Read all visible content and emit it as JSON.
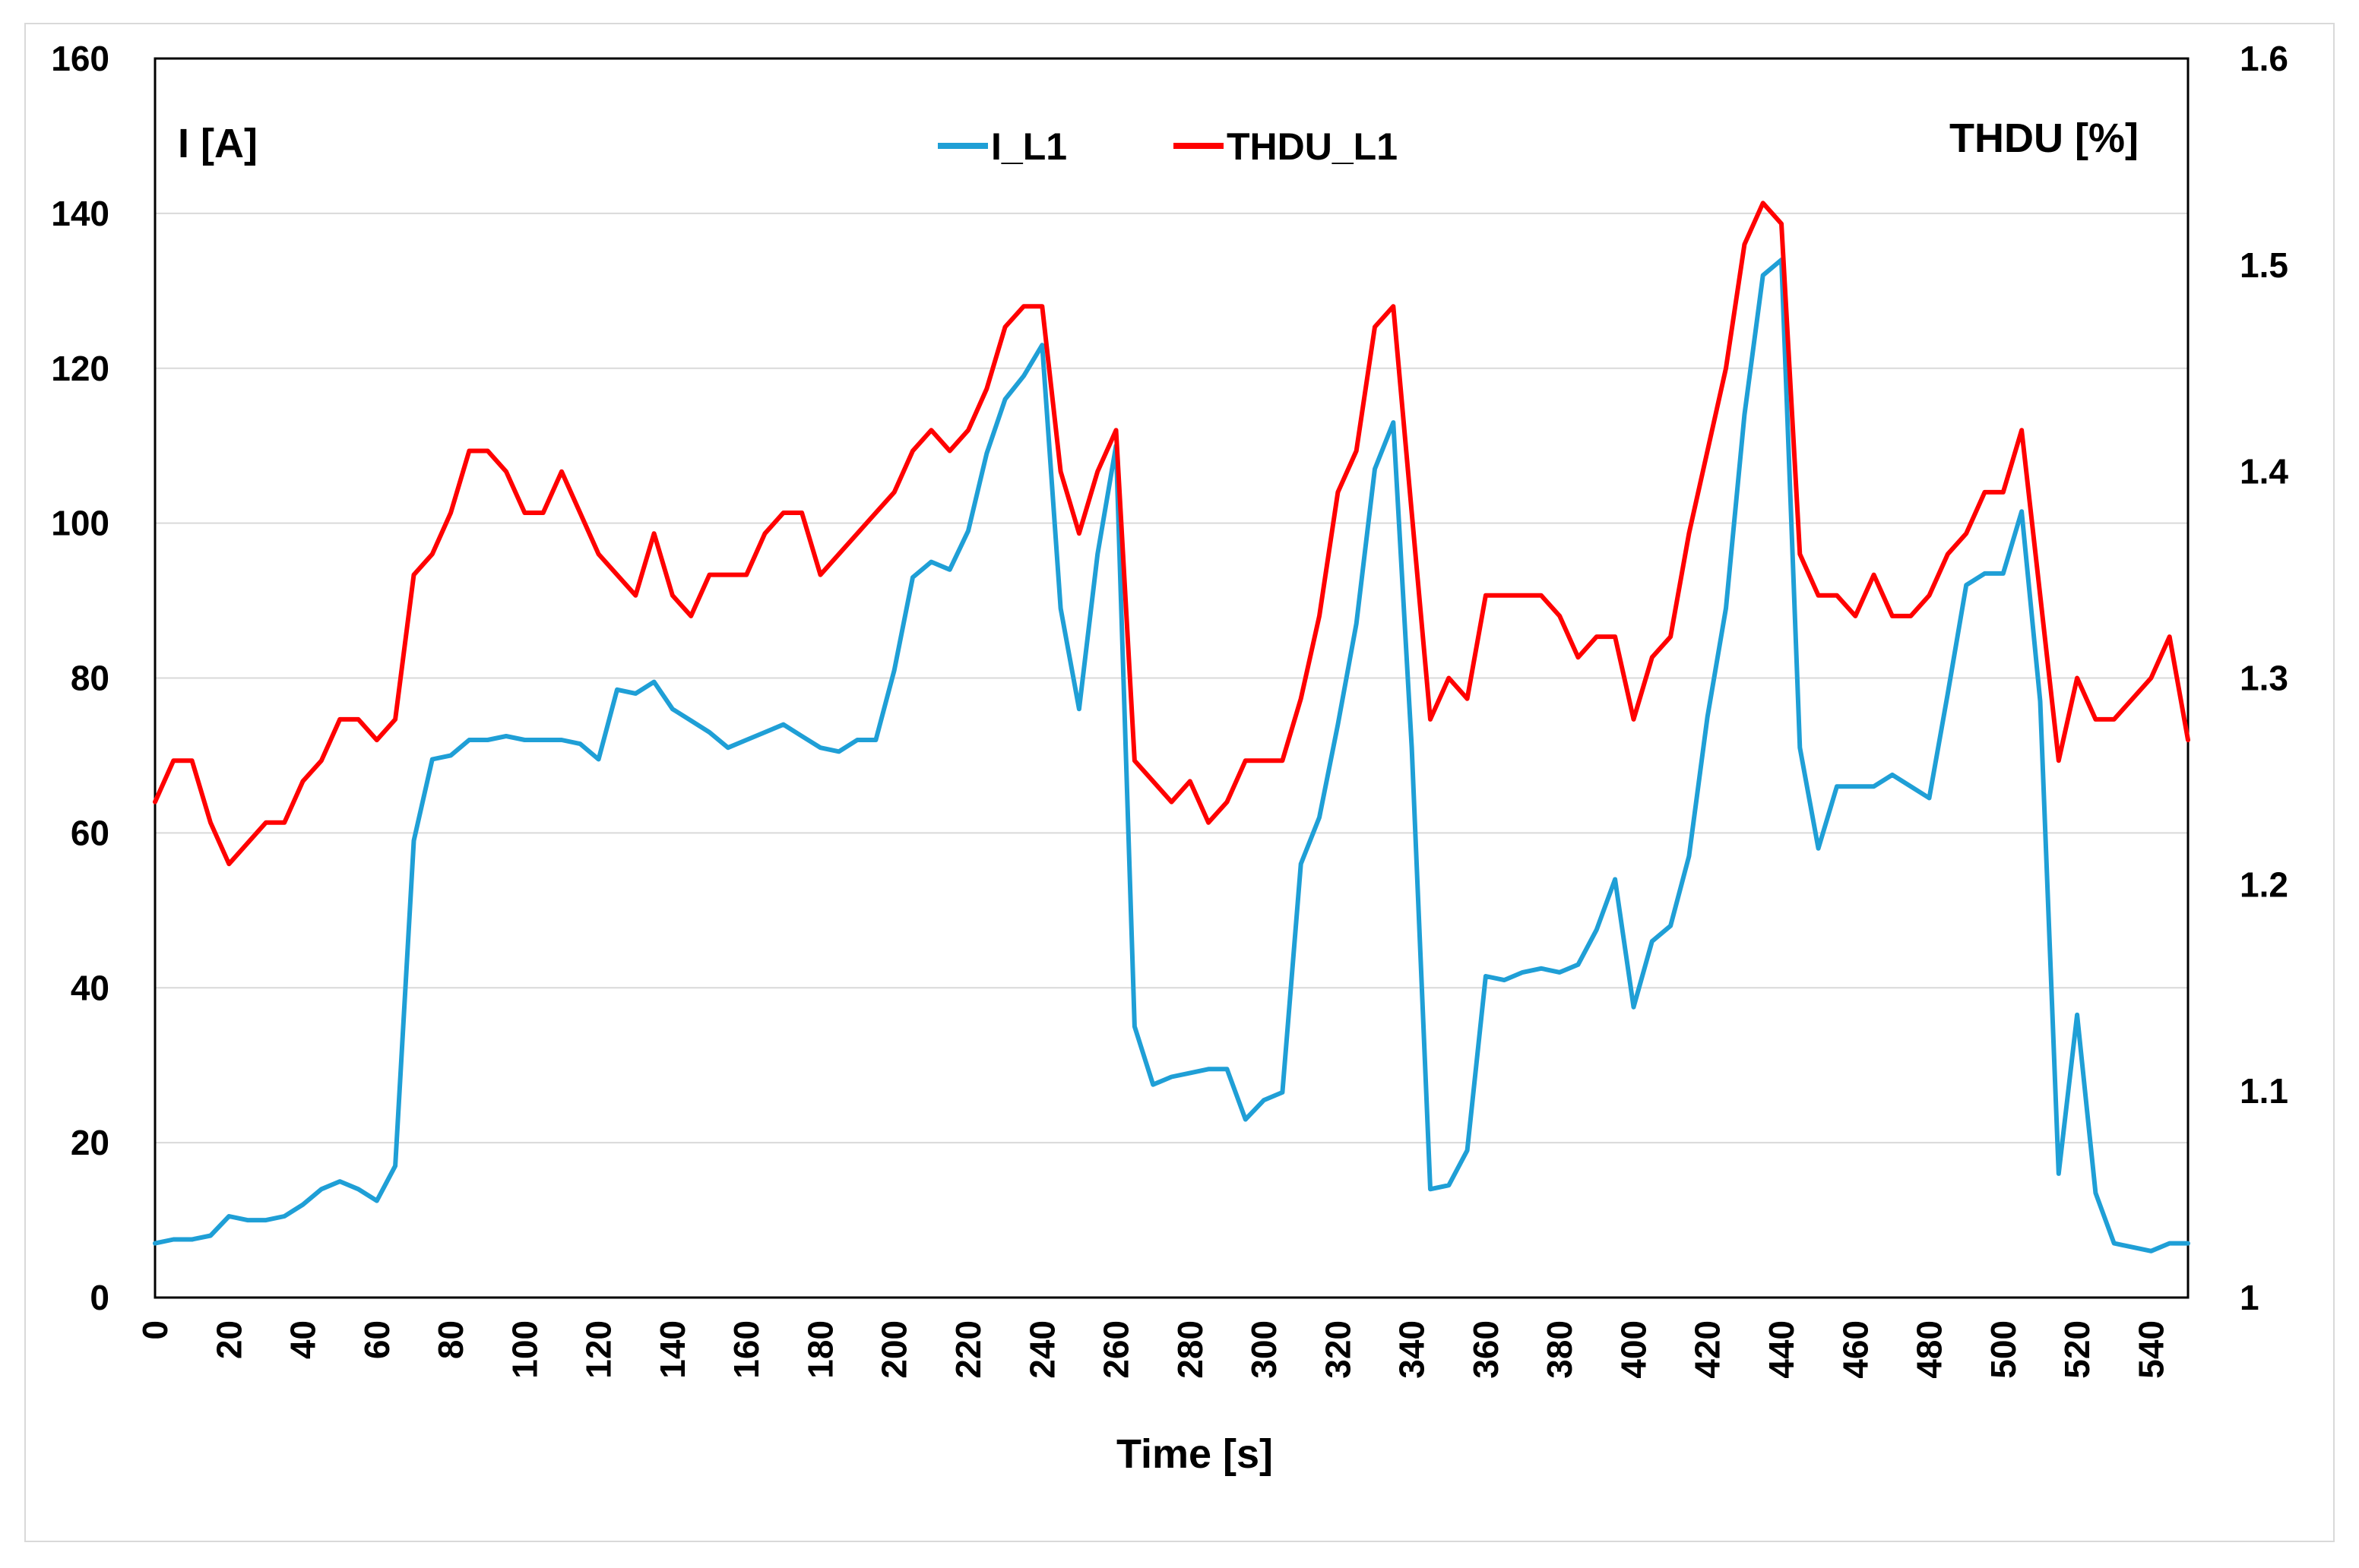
{
  "chart_data": {
    "type": "line",
    "title": "",
    "xlabel": "Time [s]",
    "ylabel_left": "I [A]",
    "ylabel_right": "THDU [%]",
    "xlim": [
      0,
      550
    ],
    "ylim_left": [
      0,
      160
    ],
    "ylim_right": [
      1,
      1.6
    ],
    "x_ticks": [
      0,
      20,
      40,
      60,
      80,
      100,
      120,
      140,
      160,
      180,
      200,
      220,
      240,
      260,
      280,
      300,
      320,
      340,
      360,
      380,
      400,
      420,
      440,
      460,
      480,
      500,
      520,
      540
    ],
    "y_ticks_left": [
      0,
      20,
      40,
      60,
      80,
      100,
      120,
      140,
      160
    ],
    "y_ticks_right": [
      "1",
      "1.1",
      "1.2",
      "1.3",
      "1.4",
      "1.5",
      "1.6"
    ],
    "grid": "horizontal",
    "legend": "top-center",
    "series": [
      {
        "name": "I_L1",
        "axis": "left",
        "color": "#1f9fd6",
        "x": [
          0,
          5,
          10,
          15,
          20,
          25,
          30,
          35,
          40,
          45,
          50,
          55,
          60,
          65,
          70,
          75,
          80,
          85,
          90,
          95,
          100,
          105,
          110,
          115,
          120,
          125,
          130,
          135,
          140,
          145,
          150,
          155,
          160,
          165,
          170,
          175,
          180,
          185,
          190,
          195,
          200,
          205,
          210,
          215,
          220,
          225,
          230,
          235,
          240,
          245,
          250,
          255,
          260,
          265,
          270,
          275,
          280,
          285,
          290,
          295,
          300,
          305,
          310,
          315,
          320,
          325,
          330,
          335,
          340,
          345,
          350,
          355,
          360,
          365,
          370,
          375,
          380,
          385,
          390,
          395,
          400,
          405,
          410,
          415,
          420,
          425,
          430,
          435,
          440,
          445,
          450,
          455,
          460,
          465,
          470,
          475,
          480,
          485,
          490,
          495,
          500,
          505,
          510,
          515,
          520,
          525,
          530,
          535,
          540,
          545,
          550
        ],
        "values": [
          7,
          7.5,
          7.5,
          8,
          10.5,
          10,
          10,
          10.5,
          12,
          14,
          15,
          14,
          12.5,
          17,
          59,
          69.5,
          70,
          72,
          72,
          72.5,
          72,
          72,
          72,
          71.5,
          69.5,
          78.5,
          78,
          79.5,
          76,
          74.5,
          73,
          71,
          72,
          73,
          74,
          72.5,
          71,
          70.5,
          72,
          72,
          81,
          93,
          95,
          94,
          99,
          109,
          116,
          119,
          123,
          89,
          76,
          96,
          110,
          35,
          27.5,
          28.5,
          29,
          29.5,
          29.5,
          23,
          25.5,
          26.5,
          56,
          62,
          74,
          87,
          107,
          113,
          71,
          14,
          14.5,
          19,
          41.5,
          41,
          42,
          42.5,
          42,
          43,
          47.5,
          54,
          37.5,
          46,
          48,
          57,
          75,
          89,
          114,
          132,
          134,
          71,
          58,
          66,
          66,
          66,
          67.5,
          66,
          64.5,
          78,
          92,
          93.5,
          93.5,
          101.5,
          77,
          16,
          36.5,
          13.5,
          7,
          6.5,
          6,
          7,
          7
        ]
      },
      {
        "name": "THDU_L1",
        "axis": "right",
        "color": "#ff0000",
        "x": [
          0,
          5,
          10,
          15,
          20,
          25,
          30,
          35,
          40,
          45,
          50,
          55,
          60,
          65,
          70,
          75,
          80,
          85,
          90,
          95,
          100,
          105,
          110,
          115,
          120,
          125,
          130,
          135,
          140,
          145,
          150,
          155,
          160,
          165,
          170,
          175,
          180,
          185,
          190,
          195,
          200,
          205,
          210,
          215,
          220,
          225,
          230,
          235,
          240,
          245,
          250,
          255,
          260,
          265,
          270,
          275,
          280,
          285,
          290,
          295,
          300,
          305,
          310,
          315,
          320,
          325,
          330,
          335,
          340,
          345,
          350,
          355,
          360,
          365,
          370,
          375,
          380,
          385,
          390,
          395,
          400,
          405,
          410,
          415,
          420,
          425,
          430,
          435,
          440,
          445,
          450,
          455,
          460,
          465,
          470,
          475,
          480,
          485,
          490,
          495,
          500,
          505,
          510,
          515,
          520,
          525,
          530,
          535,
          540,
          545,
          550
        ],
        "values": [
          1.24,
          1.26,
          1.26,
          1.23,
          1.21,
          1.22,
          1.23,
          1.23,
          1.25,
          1.26,
          1.28,
          1.28,
          1.27,
          1.28,
          1.35,
          1.36,
          1.38,
          1.41,
          1.41,
          1.4,
          1.38,
          1.38,
          1.4,
          1.38,
          1.36,
          1.35,
          1.34,
          1.37,
          1.34,
          1.33,
          1.35,
          1.35,
          1.35,
          1.37,
          1.38,
          1.38,
          1.35,
          1.36,
          1.37,
          1.38,
          1.39,
          1.41,
          1.42,
          1.41,
          1.42,
          1.44,
          1.47,
          1.48,
          1.48,
          1.4,
          1.37,
          1.4,
          1.42,
          1.26,
          1.25,
          1.24,
          1.25,
          1.23,
          1.24,
          1.26,
          1.26,
          1.26,
          1.29,
          1.33,
          1.39,
          1.41,
          1.47,
          1.48,
          1.38,
          1.28,
          1.3,
          1.29,
          1.34,
          1.34,
          1.34,
          1.34,
          1.33,
          1.31,
          1.32,
          1.32,
          1.28,
          1.31,
          1.32,
          1.37,
          1.41,
          1.45,
          1.51,
          1.53,
          1.52,
          1.36,
          1.34,
          1.34,
          1.33,
          1.35,
          1.33,
          1.33,
          1.34,
          1.36,
          1.37,
          1.39,
          1.39,
          1.42,
          1.34,
          1.26,
          1.3,
          1.28,
          1.28,
          1.29,
          1.3,
          1.32,
          1.27
        ]
      }
    ]
  }
}
